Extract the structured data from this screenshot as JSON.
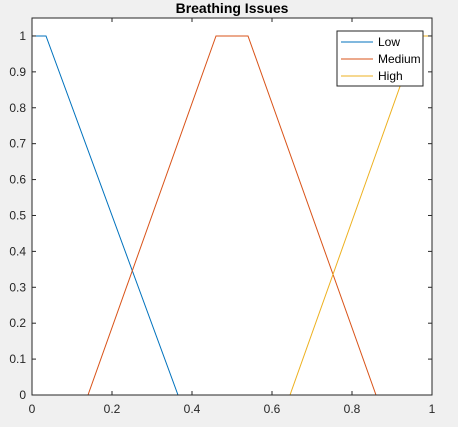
{
  "chart_data": {
    "type": "line",
    "title": "Breathing Issues",
    "xlim": [
      0,
      1
    ],
    "ylim": [
      0,
      1.05
    ],
    "xticks": [
      "0",
      "0.2",
      "0.4",
      "0.6",
      "0.8",
      "1"
    ],
    "yticks": [
      "0",
      "0.1",
      "0.2",
      "0.3",
      "0.4",
      "0.5",
      "0.6",
      "0.7",
      "0.8",
      "0.9",
      "1"
    ],
    "grid": false,
    "legend_position": "top-right",
    "series": [
      {
        "name": "Low",
        "color": "#0072bd",
        "x": [
          0,
          0.035,
          0.365,
          0.86,
          1
        ],
        "y": [
          1,
          1,
          0,
          0,
          0
        ]
      },
      {
        "name": "Medium",
        "color": "#d95319",
        "x": [
          0,
          0.14,
          0.46,
          0.54,
          0.86,
          1
        ],
        "y": [
          0,
          0,
          1,
          1,
          0,
          0
        ]
      },
      {
        "name": "High",
        "color": "#edb120",
        "x": [
          0,
          0.645,
          0.965,
          1
        ],
        "y": [
          0,
          0,
          1,
          1
        ]
      }
    ]
  }
}
